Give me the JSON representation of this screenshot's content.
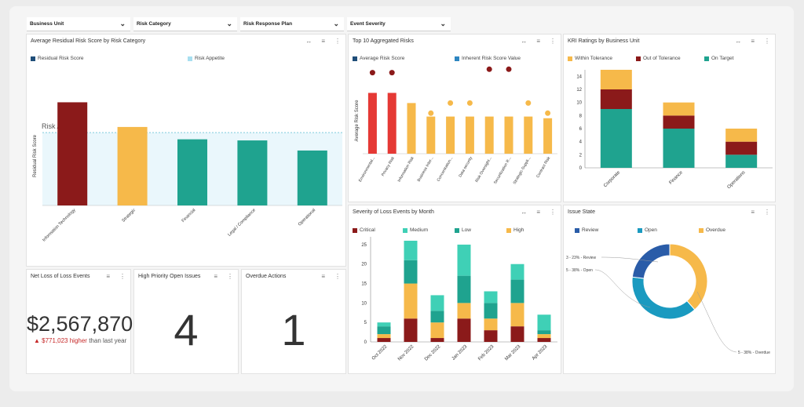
{
  "filters": [
    {
      "label": "Business Unit"
    },
    {
      "label": "Risk Category"
    },
    {
      "label": "Risk Response Plan"
    },
    {
      "label": "Event Severity"
    }
  ],
  "panels": {
    "avg_residual": {
      "title": "Average Residual Risk Score by Risk Category",
      "legend": [
        "Residual Risk Score",
        "Risk Appetite"
      ],
      "ylabel": "Residual Risk Score",
      "appetite_label": "Risk Appetite"
    },
    "top10": {
      "title": "Top 10 Aggregated Risks",
      "legend": [
        "Average Risk Score",
        "Inherent Risk Score Value"
      ],
      "ylabel": "Average Risk Score"
    },
    "kri": {
      "title": "KRI Ratings by Business Unit",
      "legend": [
        "Within Tolerance",
        "Out of Tolerance",
        "On Target"
      ]
    },
    "severity": {
      "title": "Severity of Loss Events by Month",
      "legend": [
        "Critical",
        "Medium",
        "Low",
        "High"
      ]
    },
    "issue_state": {
      "title": "Issue State",
      "legend": [
        "Review",
        "Open",
        "Overdue"
      ],
      "labels": {
        "review": "3 - 23% - Review",
        "open": "5 - 38% - Open",
        "overdue": "5 - 38% - Overdue"
      }
    },
    "net_loss": {
      "title": "Net Loss of Loss Events",
      "value": "$2,567,870",
      "delta": "▲ $771,023 higher",
      "delta_suffix": "than last year"
    },
    "high_priority": {
      "title": "High Priority Open Issues",
      "value": "4"
    },
    "overdue": {
      "title": "Overdue Actions",
      "value": "1"
    }
  },
  "colors": {
    "dark_red": "#8b1a1a",
    "red": "#e53935",
    "orange": "#f6b94a",
    "teal": "#1fa38f",
    "light_teal": "#3fd0b6",
    "navy": "#1f4e79",
    "blue": "#2e86c1",
    "appetite": "#a8dff0"
  },
  "chart_data": [
    {
      "type": "bar",
      "title": "Average Residual Risk Score by Risk Category",
      "categories": [
        "Information Technology",
        "Strategic",
        "Financial",
        "Legal / Compliance",
        "Operational"
      ],
      "series": [
        {
          "name": "Residual Risk Score",
          "values": [
            9.2,
            7.0,
            5.9,
            5.8,
            4.9
          ]
        }
      ],
      "appetite": 6.5,
      "ylim": [
        0,
        10
      ],
      "ylabel": "Residual Risk Score"
    },
    {
      "type": "bar",
      "title": "Top 10 Aggregated Risks",
      "categories": [
        "Environmental...",
        "Privacy Risk",
        "Information Risk",
        "Business Inter...",
        "Concentration...",
        "Data security",
        "Risk Oversight...",
        "Securitization R...",
        "Strategic-Suppli...",
        "Contract Risk"
      ],
      "series": [
        {
          "name": "Average Risk Score",
          "values": [
            18,
            18,
            15,
            11,
            11,
            11,
            11,
            11,
            11,
            10.5
          ]
        },
        {
          "name": "Inherent Risk Score Value",
          "values": [
            24,
            24,
            null,
            12,
            15,
            15,
            25,
            25,
            15,
            12
          ]
        }
      ],
      "ylim": [
        0,
        26
      ],
      "ylabel": "Average Risk Score"
    },
    {
      "type": "bar",
      "title": "KRI Ratings by Business Unit",
      "categories": [
        "Corporate",
        "Finance",
        "Operations"
      ],
      "series": [
        {
          "name": "On Target",
          "values": [
            9,
            6,
            2
          ]
        },
        {
          "name": "Out of Tolerance",
          "values": [
            3,
            2,
            2
          ]
        },
        {
          "name": "Within Tolerance",
          "values": [
            3,
            2,
            2
          ]
        }
      ],
      "yticks": [
        0,
        2,
        4,
        6,
        8,
        10,
        12,
        14
      ],
      "ylim": [
        0,
        15
      ]
    },
    {
      "type": "bar",
      "title": "Severity of Loss Events by Month",
      "categories": [
        "Oct 2022",
        "Nov 2022",
        "Dec 2022",
        "Jan 2023",
        "Feb 2023",
        "Mar 2023",
        "Apr 2023"
      ],
      "series": [
        {
          "name": "Critical",
          "values": [
            1,
            6,
            1,
            6,
            3,
            4,
            1
          ]
        },
        {
          "name": "High",
          "values": [
            1,
            9,
            4,
            4,
            3,
            6,
            1
          ]
        },
        {
          "name": "Low",
          "values": [
            2,
            6,
            3,
            7,
            4,
            6,
            1
          ]
        },
        {
          "name": "Medium",
          "values": [
            1,
            5,
            4,
            8,
            3,
            4,
            4
          ]
        }
      ],
      "yticks": [
        0,
        5,
        10,
        15,
        20,
        25
      ],
      "ylim": [
        0,
        27
      ]
    },
    {
      "type": "pie",
      "title": "Issue State",
      "labels": [
        "Review",
        "Open",
        "Overdue"
      ],
      "values": [
        3,
        5,
        5
      ],
      "percent": [
        23,
        38,
        38
      ]
    }
  ]
}
